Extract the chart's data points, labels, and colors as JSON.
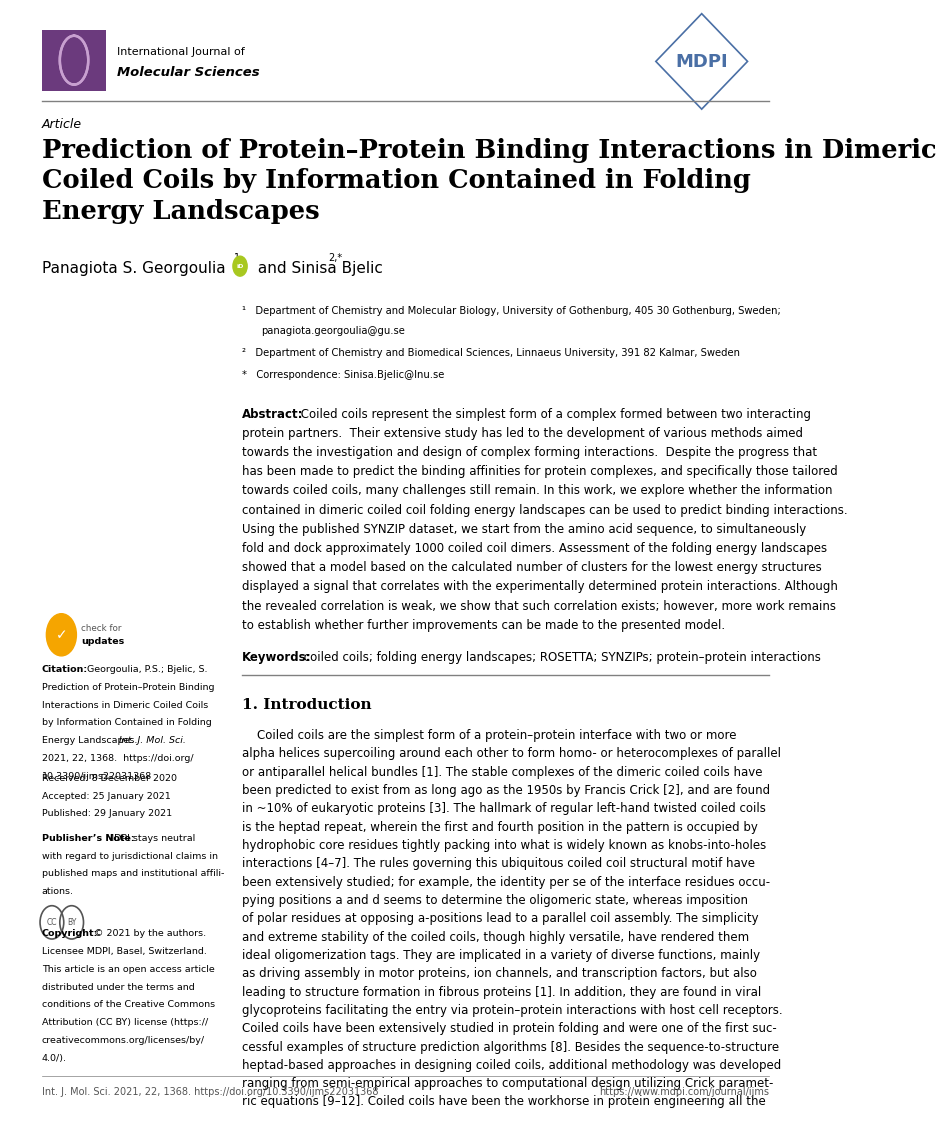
{
  "bg_color": "#ffffff",
  "page_width": 10.2,
  "page_height": 14.42,
  "journal_name_line1": "International Journal of",
  "journal_name_line2": "Molecular Sciences",
  "article_label": "Article",
  "title": "Prediction of Protein–Protein Binding Interactions in Dimeric\nCoiled Coils by Information Contained in Folding\nEnergy Landscapes",
  "authors": "Panagiota S. Georgoulia",
  "authors2": " and Sinisa Bjelic ",
  "affil1a": "¹   Department of Chemistry and Molecular Biology, University of Gothenburg, 405 30 Gothenburg, Sweden;",
  "affil1b": "    panagiota.georgoulia@gu.se",
  "affil2": "²   Department of Chemistry and Biomedical Sciences, Linnaeus University, 391 82 Kalmar, Sweden",
  "affil3": "*   Correspondence: Sinisa.Bjelic@lnu.se",
  "abstract_label": "Abstract:",
  "abstract_lines": [
    " Coiled coils represent the simplest form of a complex formed between two interacting",
    "protein partners.  Their extensive study has led to the development of various methods aimed",
    "towards the investigation and design of complex forming interactions.  Despite the progress that",
    "has been made to predict the binding affinities for protein complexes, and specifically those tailored",
    "towards coiled coils, many challenges still remain. In this work, we explore whether the information",
    "contained in dimeric coiled coil folding energy landscapes can be used to predict binding interactions.",
    "Using the published SYNZIP dataset, we start from the amino acid sequence, to simultaneously",
    "fold and dock approximately 1000 coiled coil dimers. Assessment of the folding energy landscapes",
    "showed that a model based on the calculated number of clusters for the lowest energy structures",
    "displayed a signal that correlates with the experimentally determined protein interactions. Although",
    "the revealed correlation is weak, we show that such correlation exists; however, more work remains",
    "to establish whether further improvements can be made to the presented model."
  ],
  "keywords_label": "Keywords:",
  "keywords_text": " coiled coils; folding energy landscapes; ROSETTA; SYNZIPs; protein–protein interactions",
  "section1_title": "1. Introduction",
  "intro_lines": [
    "    Coiled coils are the simplest form of a protein–protein interface with two or more",
    "alpha helices supercoiling around each other to form homo- or heterocomplexes of parallel",
    "or antiparallel helical bundles [1]. The stable complexes of the dimeric coiled coils have",
    "been predicted to exist from as long ago as the 1950s by Francis Crick [2], and are found",
    "in ~10% of eukaryotic proteins [3]. The hallmark of regular left-hand twisted coiled coils",
    "is the heptad repeat, wherein the first and fourth position in the pattern is occupied by",
    "hydrophobic core residues tightly packing into what is widely known as knobs-into-holes",
    "interactions [4–7]. The rules governing this ubiquitous coiled coil structural motif have",
    "been extensively studied; for example, the identity per se of the interface residues occu-",
    "pying positions a and d seems to determine the oligomeric state, whereas imposition",
    "of polar residues at opposing a-positions lead to a parallel coil assembly. The simplicity",
    "and extreme stability of the coiled coils, though highly versatile, have rendered them",
    "ideal oligomerization tags. They are implicated in a variety of diverse functions, mainly",
    "as driving assembly in motor proteins, ion channels, and transcription factors, but also",
    "leading to structure formation in fibrous proteins [1]. In addition, they are found in viral",
    "glycoproteins facilitating the entry via protein–protein interactions with host cell receptors.",
    "Coiled coils have been extensively studied in protein folding and were one of the first suc-",
    "cessful examples of structure prediction algorithms [8]. Besides the sequence-to-structure",
    "heptad-based approaches in designing coiled coils, additional methodology was developed",
    "ranging from semi-empirical approaches to computational design utilizing Crick paramet-",
    "ric equations [9–12]. Coiled coils have been the workhorse in protein engineering all the"
  ],
  "citation_label": "Citation:",
  "citation_lines": [
    " Georgoulia, P.S.; Bjelic, S.",
    "Prediction of Protein–Protein Binding",
    "Interactions in Dimeric Coiled Coils",
    "by Information Contained in Folding",
    "Energy Landscapes. Int. J. Mol. Sci.",
    "2021, 22, 1368.  https://doi.org/",
    "10.3390/ijms22031368"
  ],
  "received": "Received: 8 December 2020",
  "accepted": "Accepted: 25 January 2021",
  "published": "Published: 29 January 2021",
  "publisher_note_label": "Publisher’s Note:",
  "publisher_note_lines": [
    " MDPI stays neutral",
    "with regard to jurisdictional claims in",
    "published maps and institutional affili-",
    "ations."
  ],
  "copyright_label": "Copyright:",
  "copyright_lines": [
    " © 2021 by the authors.",
    "Licensee MDPI, Basel, Switzerland.",
    "This article is an open access article",
    "distributed under the terms and",
    "conditions of the Creative Commons",
    "Attribution (CC BY) license (https://",
    "creativecommons.org/licenses/by/",
    "4.0/)."
  ],
  "footer_citation": "Int. J. Mol. Sci. 2021, 22, 1368. https://doi.org/10.3390/ijms22031368",
  "footer_url": "https://www.mdpi.com/journal/ijms",
  "logo_box_color": "#6B3A7D",
  "mdpi_color": "#4A6FA5",
  "separator_color": "#808080",
  "text_color": "#000000",
  "gray_color": "#555555",
  "orcid_color": "#A8C820",
  "check_color": "#F5A500"
}
